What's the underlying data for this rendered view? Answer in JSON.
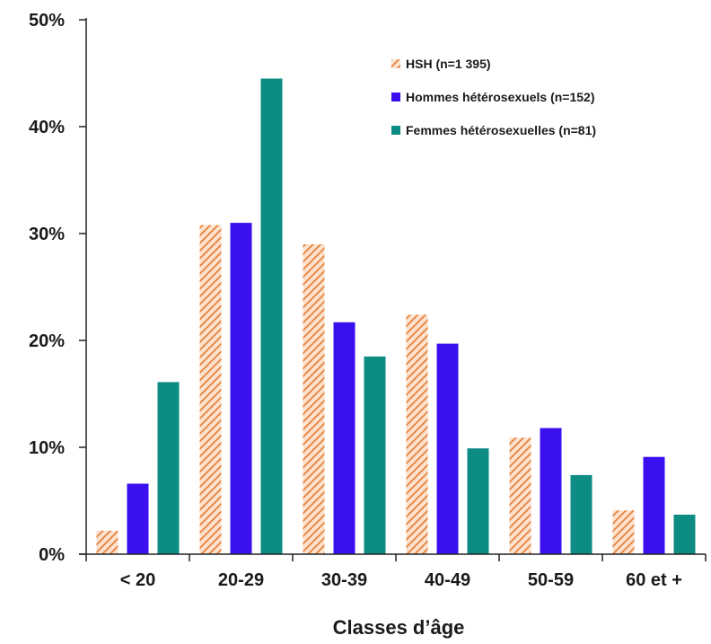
{
  "chart_data": {
    "type": "bar",
    "title": "",
    "xlabel": "Classes d’âge",
    "ylabel": "",
    "categories": [
      "< 20",
      "20-29",
      "30-39",
      "40-49",
      "50-59",
      "60 et +"
    ],
    "ylim": [
      0,
      50
    ],
    "yticks": [
      0,
      10,
      20,
      30,
      40,
      50
    ],
    "ytick_labels": [
      "0%",
      "10%",
      "20%",
      "30%",
      "40%",
      "50%"
    ],
    "grid": false,
    "legend_position": "top-right",
    "series": [
      {
        "name": "HSH (n=1 395)",
        "color": "#e8803a",
        "pattern": "diagonal-hatch",
        "values": [
          2.2,
          30.8,
          29.0,
          22.4,
          10.9,
          4.1
        ]
      },
      {
        "name": "Hommes hétérosexuels (n=152)",
        "color": "#3b10f0",
        "pattern": "solid",
        "values": [
          6.6,
          31.0,
          21.7,
          19.7,
          11.8,
          9.1
        ]
      },
      {
        "name": "Femmes hétérosexuelles (n=81)",
        "color": "#0d8c84",
        "pattern": "solid",
        "values": [
          16.1,
          44.5,
          18.5,
          9.9,
          7.4,
          3.7
        ]
      }
    ]
  }
}
